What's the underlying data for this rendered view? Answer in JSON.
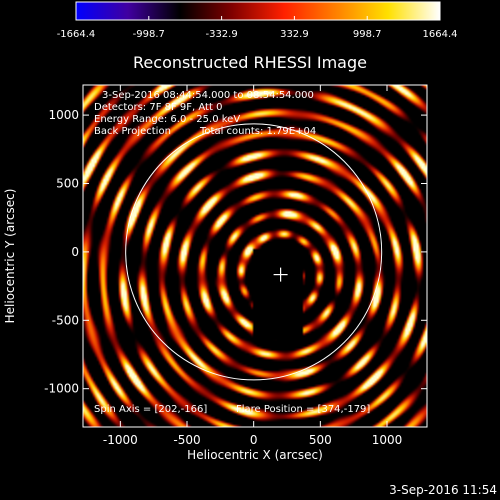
{
  "chart_data": {
    "type": "heatmap",
    "title": "Reconstructed RHESSI Image",
    "xlabel": "Heliocentric X (arcsec)",
    "ylabel": "Heliocentric Y (arcsec)",
    "xlim": [
      -1280,
      1300
    ],
    "ylim": [
      -1280,
      1220
    ],
    "x_ticks": [
      -1000,
      -500,
      0,
      500,
      1000
    ],
    "x_tick_labels": [
      "-1000",
      "-500",
      "0",
      "500",
      "1000"
    ],
    "y_ticks": [
      -1000,
      -500,
      0,
      500,
      1000
    ],
    "y_tick_labels": [
      "-1000",
      "-500",
      "0",
      "500",
      "1000"
    ],
    "colorbar": {
      "range": [
        -1664.4,
        1664.4
      ],
      "tick_values": [
        -1664.4,
        -998.7,
        -332.9,
        332.9,
        998.7,
        1664.4
      ],
      "tick_labels": [
        "-1664.4",
        "-998.7",
        "-332.9",
        "332.9",
        "998.7",
        "1664.4"
      ],
      "colormap": [
        "#0000ff",
        "#4000a0",
        "#000000",
        "#800000",
        "#ff2000",
        "#ff8000",
        "#ffe000",
        "#ffffff"
      ]
    },
    "annotations": {
      "time_range": "3-Sep-2016 08:44:54.000 to 08:54:54.000",
      "detectors": "Detectors: 7F 8F 9F, Att 0",
      "energy": "Energy Range: 6.0 - 25.0 keV",
      "method": "Back Projection",
      "counts": "Total counts: 1.79E+04",
      "spin_axis": "Spin Axis = [202,-166]",
      "flare_position": "Flare Position = [374,-179]"
    },
    "solar_limb_radius_arcsec": 960,
    "solar_limb_center": [
      0,
      0
    ],
    "marker_position": [
      202,
      -166
    ],
    "masked_region": {
      "x": [
        0,
        370
      ],
      "y": [
        -640,
        20
      ]
    },
    "pattern": {
      "center": [
        202,
        -166
      ],
      "ring_spacing_arcsec": 148,
      "angular_lobes": 12
    }
  },
  "timestamp": "3-Sep-2016 11:54"
}
